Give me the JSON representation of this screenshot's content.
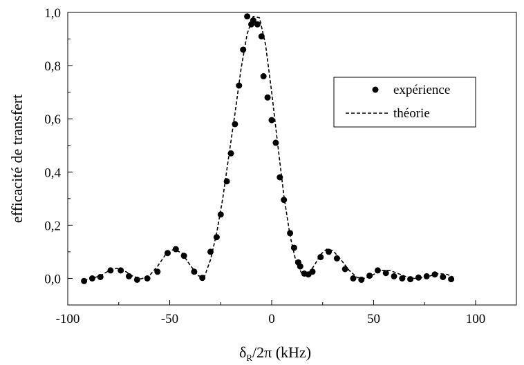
{
  "chart_data": {
    "type": "scatter",
    "title": "",
    "xlabel": {
      "main": "δ",
      "sub": "R",
      "rest": "/2π (kHz)"
    },
    "ylabel": "efficacité de transfert",
    "xlim": [
      -100,
      120
    ],
    "ylim": [
      -0.1,
      1.0
    ],
    "xticks": [
      {
        "value": -100,
        "label": "-100"
      },
      {
        "value": -50,
        "label": "-50"
      },
      {
        "value": 0,
        "label": "0"
      },
      {
        "value": 50,
        "label": "50"
      },
      {
        "value": 100,
        "label": "100"
      }
    ],
    "yticks": [
      {
        "value": 0.0,
        "label": "0,0"
      },
      {
        "value": 0.2,
        "label": "0,2"
      },
      {
        "value": 0.4,
        "label": "0,4"
      },
      {
        "value": 0.6,
        "label": "0,6"
      },
      {
        "value": 0.8,
        "label": "0,8"
      },
      {
        "value": 1.0,
        "label": "1,0"
      }
    ],
    "grid": false,
    "legend_position": "top-right",
    "series": [
      {
        "name": "expérience",
        "style": "markers",
        "color": "#000000",
        "points": [
          [
            -92,
            -0.01
          ],
          [
            -88,
            0.0
          ],
          [
            -84,
            0.005
          ],
          [
            -79,
            0.03
          ],
          [
            -74,
            0.03
          ],
          [
            -70,
            0.008
          ],
          [
            -66,
            -0.005
          ],
          [
            -61,
            0.0
          ],
          [
            -56,
            0.025
          ],
          [
            -51,
            0.095
          ],
          [
            -47,
            0.11
          ],
          [
            -43,
            0.085
          ],
          [
            -38,
            0.025
          ],
          [
            -34,
            0.002
          ],
          [
            -30,
            0.1
          ],
          [
            -27,
            0.155
          ],
          [
            -25,
            0.24
          ],
          [
            -22,
            0.365
          ],
          [
            -20,
            0.47
          ],
          [
            -18,
            0.58
          ],
          [
            -16,
            0.725
          ],
          [
            -14,
            0.86
          ],
          [
            -12,
            0.985
          ],
          [
            -10,
            0.955
          ],
          [
            -9,
            0.97
          ],
          [
            -7,
            0.955
          ],
          [
            -5,
            0.91
          ],
          [
            -4,
            0.76
          ],
          [
            -2,
            0.68
          ],
          [
            0,
            0.595
          ],
          [
            2,
            0.51
          ],
          [
            4,
            0.38
          ],
          [
            6,
            0.295
          ],
          [
            9,
            0.17
          ],
          [
            11,
            0.115
          ],
          [
            13,
            0.06
          ],
          [
            14,
            0.045
          ],
          [
            16,
            0.018
          ],
          [
            18,
            0.015
          ],
          [
            20,
            0.025
          ],
          [
            24,
            0.08
          ],
          [
            28,
            0.1
          ],
          [
            32,
            0.075
          ],
          [
            36,
            0.035
          ],
          [
            40,
            0.0
          ],
          [
            44,
            -0.005
          ],
          [
            48,
            0.01
          ],
          [
            52,
            0.03
          ],
          [
            56,
            0.02
          ],
          [
            60,
            0.008
          ],
          [
            64,
            0.0
          ],
          [
            68,
            -0.003
          ],
          [
            72,
            0.003
          ],
          [
            76,
            0.008
          ],
          [
            80,
            0.015
          ],
          [
            84,
            0.005
          ],
          [
            88,
            -0.003
          ]
        ]
      },
      {
        "name": "théorie",
        "style": "dashed-line",
        "color": "#000000",
        "points": [
          [
            -92,
            -0.008
          ],
          [
            -88,
            0.0
          ],
          [
            -84,
            0.01
          ],
          [
            -80,
            0.028
          ],
          [
            -76,
            0.038
          ],
          [
            -72,
            0.028
          ],
          [
            -68,
            0.008
          ],
          [
            -64,
            -0.002
          ],
          [
            -60,
            0.01
          ],
          [
            -56,
            0.045
          ],
          [
            -52,
            0.09
          ],
          [
            -48,
            0.11
          ],
          [
            -44,
            0.095
          ],
          [
            -40,
            0.05
          ],
          [
            -36,
            0.01
          ],
          [
            -33,
            0.005
          ],
          [
            -30,
            0.07
          ],
          [
            -27,
            0.17
          ],
          [
            -24,
            0.3
          ],
          [
            -21,
            0.46
          ],
          [
            -18,
            0.62
          ],
          [
            -15,
            0.79
          ],
          [
            -12,
            0.92
          ],
          [
            -9,
            0.985
          ],
          [
            -6,
            0.98
          ],
          [
            -3,
            0.88
          ],
          [
            0,
            0.7
          ],
          [
            3,
            0.5
          ],
          [
            6,
            0.31
          ],
          [
            9,
            0.16
          ],
          [
            12,
            0.06
          ],
          [
            15,
            0.015
          ],
          [
            18,
            0.018
          ],
          [
            21,
            0.05
          ],
          [
            24,
            0.09
          ],
          [
            27,
            0.11
          ],
          [
            30,
            0.105
          ],
          [
            34,
            0.07
          ],
          [
            38,
            0.03
          ],
          [
            42,
            0.003
          ],
          [
            46,
            0.0
          ],
          [
            50,
            0.015
          ],
          [
            54,
            0.03
          ],
          [
            58,
            0.03
          ],
          [
            62,
            0.018
          ],
          [
            66,
            0.006
          ],
          [
            70,
            0.0
          ],
          [
            74,
            0.003
          ],
          [
            78,
            0.01
          ],
          [
            82,
            0.018
          ],
          [
            86,
            0.015
          ],
          [
            89,
            0.005
          ]
        ]
      }
    ]
  }
}
